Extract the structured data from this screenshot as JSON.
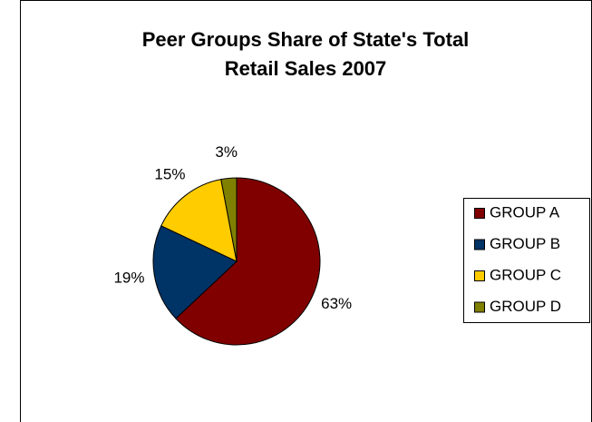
{
  "chart_data": {
    "type": "pie",
    "title": [
      "Peer Groups Share of State's Total",
      "Retail Sales 2007"
    ],
    "categories": [
      "GROUP A",
      "GROUP B",
      "GROUP C",
      "GROUP D"
    ],
    "values": [
      63,
      19,
      15,
      3
    ],
    "value_labels": [
      "63%",
      "19%",
      "15%",
      "3%"
    ],
    "colors": [
      "#800000",
      "#003366",
      "#ffcc00",
      "#808000"
    ],
    "legend": "right"
  }
}
